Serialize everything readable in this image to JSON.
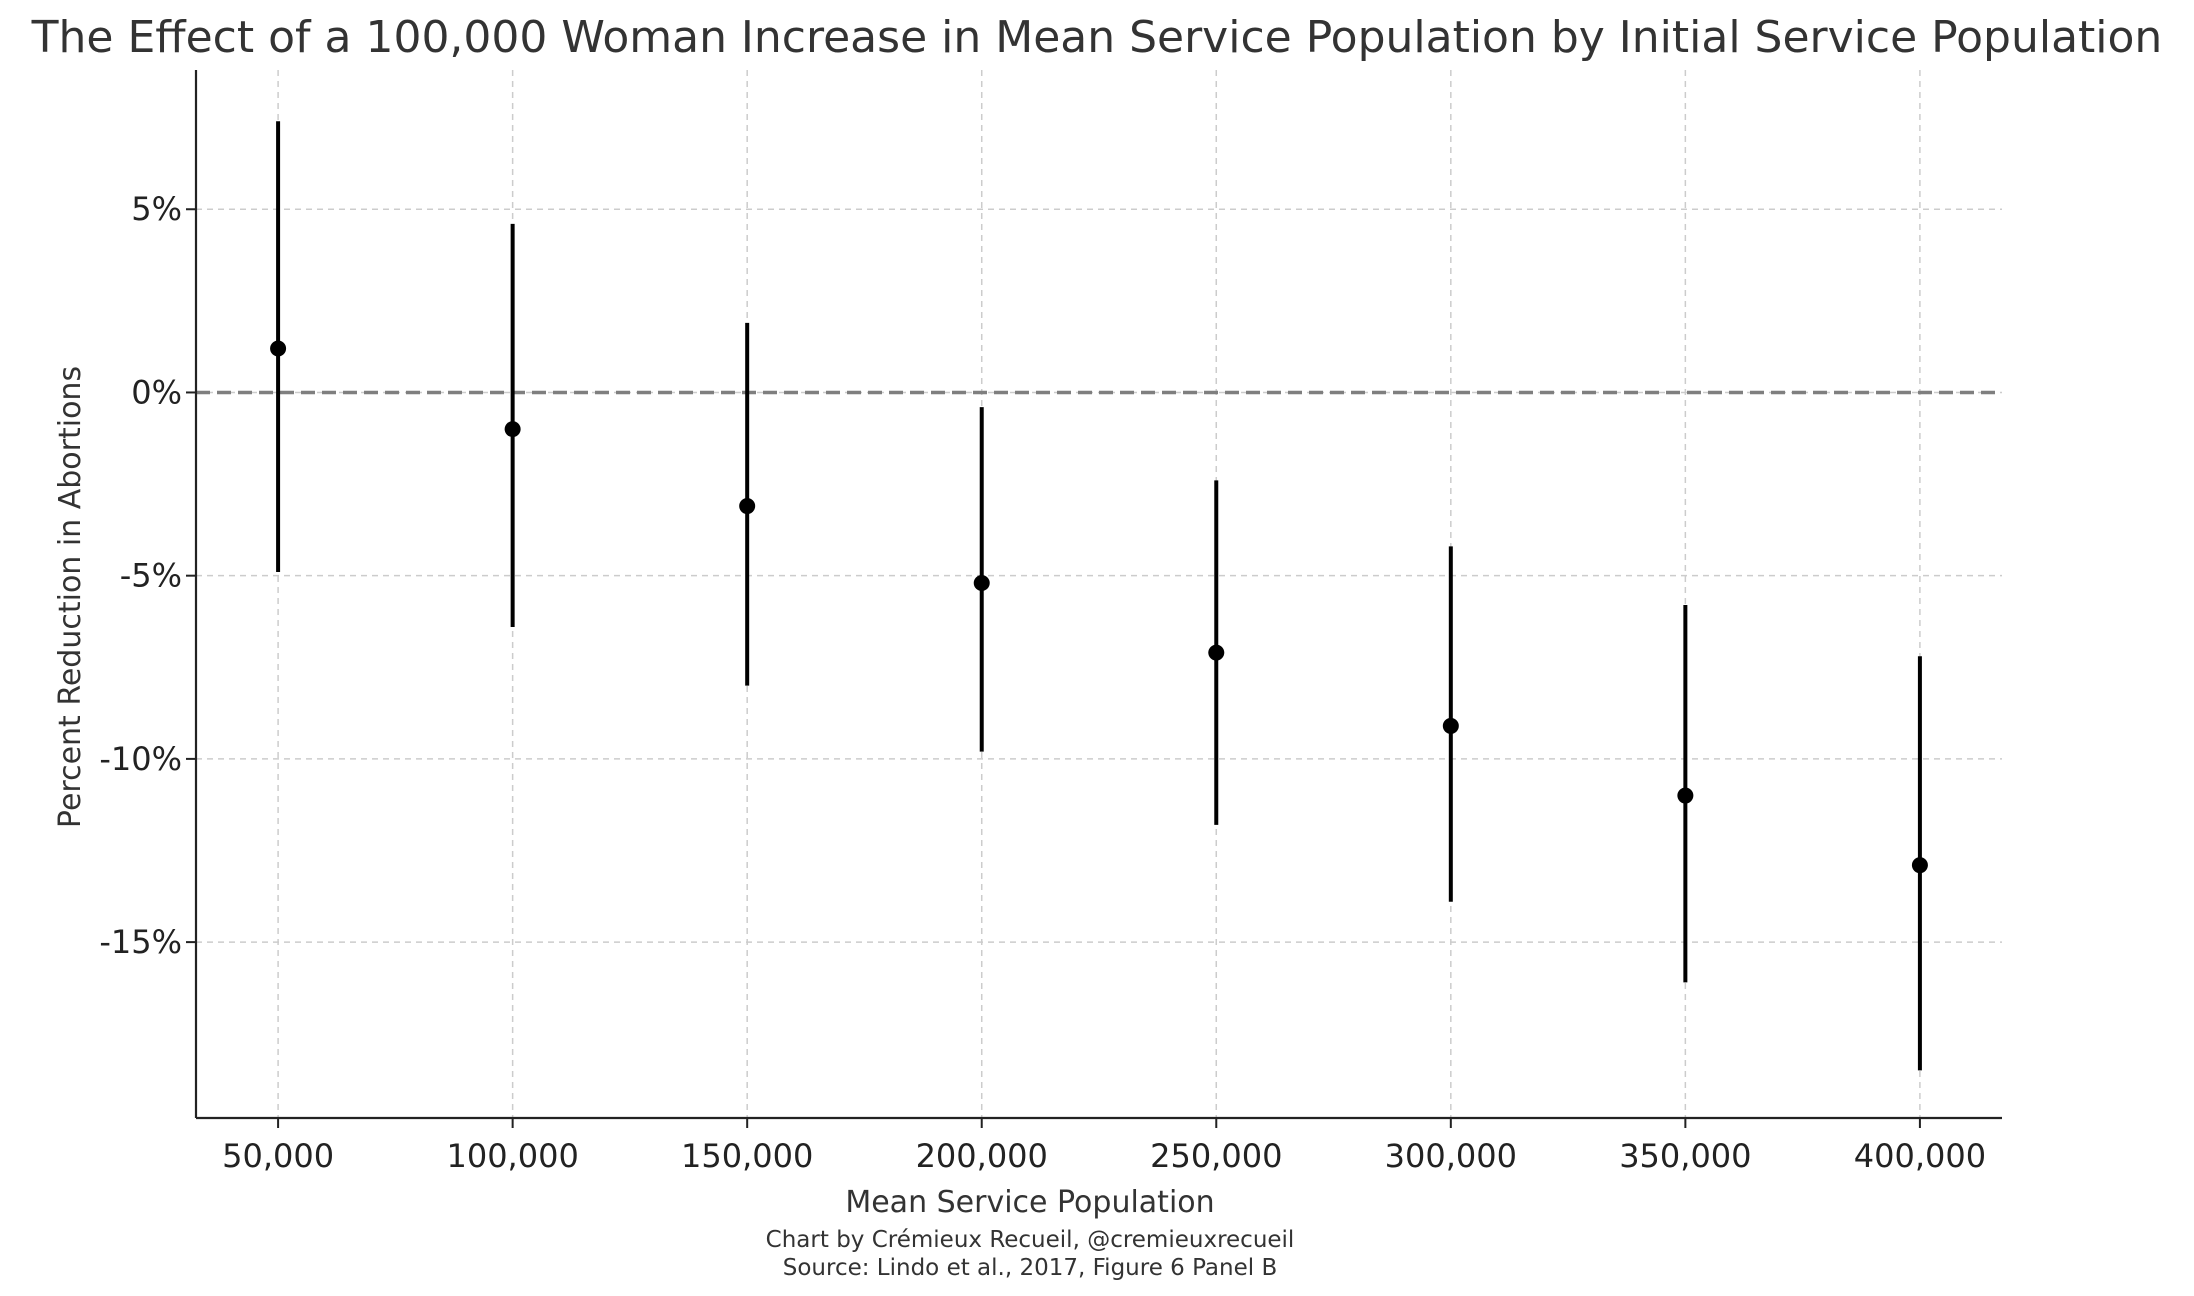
{
  "chart_data": {
    "type": "scatter",
    "title": "The Effect of a 100,000 Woman Increase in Mean Service Population by Initial Service Population",
    "xlabel": "Mean Service Population",
    "ylabel": "Percent Reduction in Abortions",
    "x": [
      50000,
      100000,
      150000,
      200000,
      250000,
      300000,
      350000,
      400000
    ],
    "x_tick_labels": [
      "50,000",
      "100,000",
      "150,000",
      "200,000",
      "250,000",
      "300,000",
      "350,000",
      "400,000"
    ],
    "series": [
      {
        "values": [
          1.2,
          -1.0,
          -3.1,
          -5.2,
          -7.1,
          -9.1,
          -11.0,
          -12.9
        ],
        "ci_low": [
          -4.9,
          -6.4,
          -8.0,
          -9.8,
          -11.8,
          -13.9,
          -16.1,
          -18.5
        ],
        "ci_high": [
          7.4,
          4.6,
          1.9,
          -0.4,
          -2.4,
          -4.2,
          -5.8,
          -7.2
        ]
      }
    ],
    "y_ticks": [
      5,
      0,
      -5,
      -10,
      -15
    ],
    "y_tick_labels": [
      "5%",
      "0%",
      "-5%",
      "-10%",
      "-15%"
    ],
    "xlim": [
      32500,
      417500
    ],
    "ylim": [
      -19.8,
      8.8
    ],
    "reference_line": 0,
    "grid": true,
    "colors": {
      "points": "#000000",
      "reference_line": "#7f7f7f",
      "grid": "#cccccc",
      "axis": "#222222"
    },
    "caption": [
      "Chart by Crémieux Recueil, @cremieuxrecueil",
      "Source: Lindo et al., 2017, Figure 6 Panel B"
    ]
  }
}
